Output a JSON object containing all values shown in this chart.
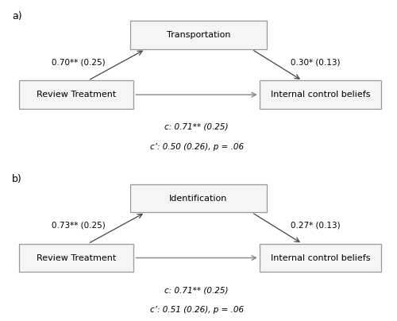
{
  "fig_width": 5.0,
  "fig_height": 4.04,
  "dpi": 100,
  "bg_color": "#ffffff",
  "panel_a": {
    "label": "a)",
    "mediator_label": "Transportation",
    "left_label": "Review Treatment",
    "right_label": "Internal control beliefs",
    "left_path_text": "0.70** (0.25)",
    "right_path_text": "0.30* (0.13)",
    "direct_text_c": "c: 0.71** (0.25)",
    "direct_text_cprime": "c’: 0.50 (0.26), p = .06"
  },
  "panel_b": {
    "label": "b)",
    "mediator_label": "Identification",
    "left_label": "Review Treatment",
    "right_label": "Internal control beliefs",
    "left_path_text": "0.73** (0.25)",
    "right_path_text": "0.27* (0.13)",
    "direct_text_c": "c: 0.71** (0.25)",
    "direct_text_cprime": "c’: 0.51 (0.26), p = .06"
  },
  "box_color": "#f5f5f5",
  "box_edge_color": "#999999",
  "arrow_color": "#444444",
  "direct_arrow_color": "#888888",
  "text_color": "#000000",
  "font_size": 8.0,
  "panel_label_font_size": 9
}
